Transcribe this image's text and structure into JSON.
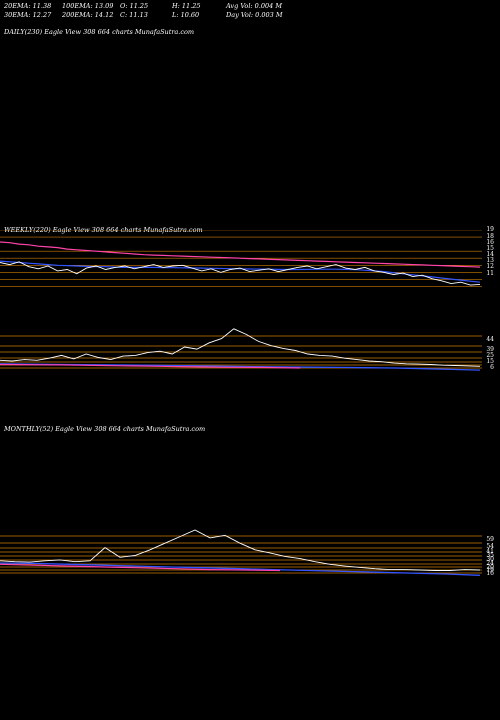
{
  "header": {
    "ema20": "20EMA: 11.38",
    "ema100": "100EMA: 13.09",
    "open": "O: 11.25",
    "high": "H: 11.25",
    "avg_vol": "Avg Vol: 0.004  M",
    "ema30": "30EMA: 12.27",
    "ema200": "200EMA: 14.12",
    "close": "C: 11.13",
    "low": "L: 10.60",
    "day_vol": "Day Vol: 0.003 M"
  },
  "daily": {
    "caption": "DAILY(230) Eagle  View  308               664  charts MunafaSutra.com"
  },
  "weekly": {
    "caption": "WEEKLY(220) Eagle  View  308               664  charts MunafaSutra.com",
    "price_labels": [
      "19",
      "18",
      "16",
      "15",
      "14",
      "13",
      "12",
      "11"
    ],
    "volume_labels": [
      "44",
      "39",
      "25",
      "15",
      "6"
    ]
  },
  "monthly": {
    "caption": "MONTHLY(52) Eagle  View  308               664  charts MunafaSutra.com",
    "volume_labels": [
      "59",
      "54",
      "41",
      "35",
      "30",
      "24",
      "20",
      "19",
      "16"
    ]
  },
  "colors": {
    "price": "#ffffff",
    "ema_short": "#3355ff",
    "ema_long": "#ff44aa",
    "level": "#cc7a00"
  },
  "chart_data": [
    {
      "type": "line",
      "title": "WEEKLY(220) Eagle View 308",
      "ylim": [
        10.5,
        19
      ],
      "series": [
        {
          "values": [
            14.4,
            14.1,
            14.5,
            13.8,
            13.5,
            13.9,
            13.2,
            13.4,
            12.8,
            13.6,
            13.9,
            13.4,
            13.7,
            13.9,
            13.5,
            13.8,
            14.1,
            13.7,
            13.9,
            14.0,
            13.6,
            13.2,
            13.5,
            13.0,
            13.4,
            13.6,
            13.1,
            13.3,
            13.5,
            13.1,
            13.4,
            13.7,
            13.9,
            13.5,
            13.8,
            14.1,
            13.6,
            13.4,
            13.7,
            13.2,
            13.0,
            12.7,
            12.9,
            12.4,
            12.6,
            12.1,
            11.8,
            11.4,
            11.6,
            11.2,
            11.3
          ]
        },
        {
          "values": [
            14.6,
            14.5,
            14.4,
            14.3,
            14.2,
            14.1,
            14.0,
            13.95,
            13.9,
            13.85,
            13.8,
            13.8,
            13.75,
            13.7,
            13.7,
            13.7,
            13.7,
            13.68,
            13.66,
            13.64,
            13.62,
            13.6,
            13.58,
            13.55,
            13.52,
            13.5,
            13.48,
            13.46,
            13.44,
            13.42,
            13.4,
            13.4,
            13.42,
            13.44,
            13.45,
            13.45,
            13.42,
            13.38,
            13.3,
            13.2,
            13.1,
            12.95,
            12.8,
            12.65,
            12.5,
            12.35,
            12.2,
            12.05,
            11.9,
            11.75,
            11.6
          ]
        },
        {
          "values": [
            17.3,
            17.2,
            17.0,
            16.9,
            16.7,
            16.6,
            16.5,
            16.3,
            16.2,
            16.1,
            16.0,
            15.9,
            15.8,
            15.7,
            15.6,
            15.5,
            15.45,
            15.4,
            15.35,
            15.3,
            15.25,
            15.2,
            15.15,
            15.1,
            15.05,
            15.0,
            14.95,
            14.9,
            14.85,
            14.8,
            14.75,
            14.7,
            14.65,
            14.6,
            14.55,
            14.5,
            14.45,
            14.4,
            14.35,
            14.3,
            14.25,
            14.2,
            14.15,
            14.1,
            14.05,
            14.0,
            13.95,
            13.9,
            13.85,
            13.8,
            13.75
          ]
        }
      ]
    },
    {
      "type": "line",
      "title": "MONTHLY(52) Eagle View 308",
      "series": [
        {
          "values": [
            0.3,
            0.28,
            0.27,
            0.3,
            0.32,
            0.28,
            0.3,
            0.6,
            0.38,
            0.42,
            0.55,
            0.7,
            0.85,
            1.0,
            0.82,
            0.88,
            0.7,
            0.55,
            0.48,
            0.4,
            0.35,
            0.28,
            0.22,
            0.18,
            0.15,
            0.12,
            0.1,
            0.1,
            0.09,
            0.08,
            0.08,
            0.1,
            0.09
          ]
        }
      ]
    }
  ]
}
